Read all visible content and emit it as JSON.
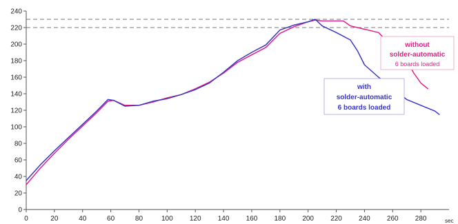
{
  "chart_data": {
    "type": "line",
    "xlim": [
      0,
      300
    ],
    "ylim": [
      0,
      240
    ],
    "x_ticks": [
      0,
      20,
      40,
      60,
      80,
      100,
      120,
      140,
      160,
      180,
      200,
      220,
      240,
      260,
      280
    ],
    "y_ticks": [
      0,
      20,
      40,
      60,
      80,
      100,
      120,
      140,
      160,
      180,
      200,
      220,
      240
    ],
    "x_unit_label": "sec",
    "reference_lines": [
      220,
      230
    ],
    "grid": false,
    "series": [
      {
        "color": "#e0218a",
        "points": [
          [
            0,
            30
          ],
          [
            10,
            50
          ],
          [
            20,
            68
          ],
          [
            30,
            85
          ],
          [
            40,
            101
          ],
          [
            50,
            117
          ],
          [
            58,
            131
          ],
          [
            62,
            132
          ],
          [
            70,
            126
          ],
          [
            80,
            126
          ],
          [
            90,
            130
          ],
          [
            100,
            135
          ],
          [
            110,
            139
          ],
          [
            120,
            146
          ],
          [
            130,
            154
          ],
          [
            140,
            165
          ],
          [
            150,
            178
          ],
          [
            160,
            187
          ],
          [
            170,
            196
          ],
          [
            180,
            213
          ],
          [
            190,
            221
          ],
          [
            200,
            227
          ],
          [
            205,
            229
          ],
          [
            210,
            228
          ],
          [
            220,
            228
          ],
          [
            225,
            228
          ],
          [
            230,
            222
          ],
          [
            240,
            218
          ],
          [
            250,
            214
          ],
          [
            260,
            196
          ],
          [
            265,
            193
          ],
          [
            270,
            180
          ],
          [
            275,
            165
          ],
          [
            280,
            153
          ],
          [
            285,
            146
          ]
        ],
        "annotation": [
          "without",
          "solder-automatic",
          "6 boards loaded"
        ]
      },
      {
        "color": "#3a36c8",
        "points": [
          [
            0,
            35
          ],
          [
            10,
            54
          ],
          [
            20,
            71
          ],
          [
            30,
            87
          ],
          [
            40,
            103
          ],
          [
            50,
            119
          ],
          [
            58,
            133
          ],
          [
            62,
            132
          ],
          [
            70,
            125
          ],
          [
            80,
            126
          ],
          [
            90,
            131
          ],
          [
            100,
            134
          ],
          [
            110,
            139
          ],
          [
            120,
            145
          ],
          [
            130,
            153
          ],
          [
            140,
            166
          ],
          [
            150,
            180
          ],
          [
            160,
            190
          ],
          [
            170,
            199
          ],
          [
            180,
            217
          ],
          [
            190,
            223
          ],
          [
            200,
            227
          ],
          [
            205,
            230
          ],
          [
            210,
            222
          ],
          [
            220,
            214
          ],
          [
            230,
            205
          ],
          [
            235,
            192
          ],
          [
            240,
            175
          ],
          [
            250,
            160
          ],
          [
            260,
            146
          ],
          [
            270,
            133
          ],
          [
            280,
            126
          ],
          [
            290,
            119
          ],
          [
            293,
            115
          ]
        ],
        "annotation": [
          "with",
          "solder-automatic",
          "6 boards loaded"
        ]
      }
    ]
  }
}
